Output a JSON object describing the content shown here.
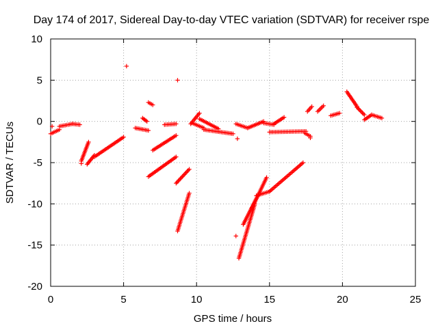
{
  "chart_data": {
    "type": "scatter",
    "title": "Day 174 of 2017, Sidereal Day-to-day VTEC variation (SDTVAR) for receiver rspe",
    "xlabel": "GPS time / hours",
    "ylabel": "SDTVAR / TECUs",
    "xlim": [
      0,
      25
    ],
    "ylim": [
      -20,
      10
    ],
    "xticks": [
      "0",
      "5",
      "10",
      "15",
      "20",
      "25"
    ],
    "yticks": [
      "10",
      "5",
      "0",
      "-5",
      "-10",
      "-15",
      "-20"
    ],
    "grid": true,
    "marker": "+",
    "color": "#ff0000",
    "segments": [
      {
        "name": "seg-0",
        "x0": 0.0,
        "y0": -1.5,
        "x1": 0.6,
        "y1": -1.0
      },
      {
        "name": "seg-1",
        "x0": 0.6,
        "y0": -0.6,
        "x1": 1.5,
        "y1": -0.3
      },
      {
        "name": "seg-2",
        "x0": 1.5,
        "y0": -0.3,
        "x1": 2.0,
        "y1": -0.4
      },
      {
        "name": "seg-3",
        "x0": 2.1,
        "y0": -4.8,
        "x1": 2.6,
        "y1": -2.5
      },
      {
        "name": "seg-4",
        "x0": 2.5,
        "y0": -5.2,
        "x1": 3.0,
        "y1": -4.1
      },
      {
        "name": "seg-5",
        "x0": 3.0,
        "y0": -4.3,
        "x1": 5.0,
        "y1": -1.9
      },
      {
        "name": "seg-6",
        "x0": 5.8,
        "y0": -0.8,
        "x1": 6.7,
        "y1": -1.1
      },
      {
        "name": "seg-7",
        "x0": 6.3,
        "y0": 0.4,
        "x1": 6.6,
        "y1": 0.0
      },
      {
        "name": "seg-8",
        "x0": 6.7,
        "y0": 2.3,
        "x1": 7.0,
        "y1": 2.0
      },
      {
        "name": "seg-9",
        "x0": 6.7,
        "y0": -6.7,
        "x1": 8.6,
        "y1": -4.3
      },
      {
        "name": "seg-10",
        "x0": 7.0,
        "y0": -3.5,
        "x1": 8.6,
        "y1": -1.7
      },
      {
        "name": "seg-11",
        "x0": 7.8,
        "y0": -0.4,
        "x1": 8.6,
        "y1": -0.3
      },
      {
        "name": "seg-12",
        "x0": 8.6,
        "y0": -7.5,
        "x1": 9.5,
        "y1": -5.8
      },
      {
        "name": "seg-13",
        "x0": 8.7,
        "y0": -13.3,
        "x1": 9.5,
        "y1": -8.7
      },
      {
        "name": "seg-14",
        "x0": 9.6,
        "y0": -0.3,
        "x1": 10.2,
        "y1": 1.0
      },
      {
        "name": "seg-15",
        "x0": 10.2,
        "y0": 0.3,
        "x1": 11.5,
        "y1": -0.9
      },
      {
        "name": "seg-16",
        "x0": 9.7,
        "y0": -0.2,
        "x1": 10.5,
        "y1": -0.8
      },
      {
        "name": "seg-17",
        "x0": 10.5,
        "y0": -1.0,
        "x1": 12.5,
        "y1": -1.5
      },
      {
        "name": "seg-18",
        "x0": 12.7,
        "y0": -0.3,
        "x1": 13.5,
        "y1": -0.8
      },
      {
        "name": "seg-19",
        "x0": 13.5,
        "y0": -0.8,
        "x1": 14.6,
        "y1": 0.0
      },
      {
        "name": "seg-20",
        "x0": 14.6,
        "y0": -0.2,
        "x1": 15.3,
        "y1": -0.4
      },
      {
        "name": "seg-21",
        "x0": 15.3,
        "y0": -0.3,
        "x1": 16.0,
        "y1": 0.5
      },
      {
        "name": "seg-22",
        "x0": 15.0,
        "y0": -1.3,
        "x1": 17.5,
        "y1": -1.2
      },
      {
        "name": "seg-23",
        "x0": 17.4,
        "y0": -1.4,
        "x1": 17.8,
        "y1": -1.8
      },
      {
        "name": "seg-24",
        "x0": 17.6,
        "y0": 1.2,
        "x1": 17.9,
        "y1": 1.8
      },
      {
        "name": "seg-25",
        "x0": 18.3,
        "y0": 1.2,
        "x1": 18.7,
        "y1": 1.9
      },
      {
        "name": "seg-26",
        "x0": 19.2,
        "y0": 0.7,
        "x1": 19.8,
        "y1": 1.0
      },
      {
        "name": "seg-27",
        "x0": 12.9,
        "y0": -16.6,
        "x1": 14.0,
        "y1": -10.0
      },
      {
        "name": "seg-28",
        "x0": 13.2,
        "y0": -12.5,
        "x1": 14.2,
        "y1": -9.0
      },
      {
        "name": "seg-29",
        "x0": 14.1,
        "y0": -9.0,
        "x1": 15.0,
        "y1": -8.5
      },
      {
        "name": "seg-30",
        "x0": 13.8,
        "y0": -10.5,
        "x1": 14.8,
        "y1": -6.8
      },
      {
        "name": "seg-31",
        "x0": 15.0,
        "y0": -8.5,
        "x1": 17.3,
        "y1": -5.0
      },
      {
        "name": "seg-32",
        "x0": 20.3,
        "y0": 3.6,
        "x1": 21.0,
        "y1": 1.8
      },
      {
        "name": "seg-33",
        "x0": 21.0,
        "y0": 1.7,
        "x1": 21.5,
        "y1": 0.8
      },
      {
        "name": "seg-34",
        "x0": 21.5,
        "y0": 0.2,
        "x1": 22.0,
        "y1": 0.8
      },
      {
        "name": "seg-35",
        "x0": 22.0,
        "y0": 0.8,
        "x1": 22.7,
        "y1": 0.4
      }
    ],
    "points": [
      {
        "x": 5.2,
        "y": 6.7
      },
      {
        "x": 8.7,
        "y": 5.0
      },
      {
        "x": 0.1,
        "y": -0.6
      },
      {
        "x": 2.1,
        "y": -5.1
      },
      {
        "x": 12.7,
        "y": -13.9
      },
      {
        "x": 12.8,
        "y": -2.1
      },
      {
        "x": 17.8,
        "y": -2.0
      }
    ]
  }
}
